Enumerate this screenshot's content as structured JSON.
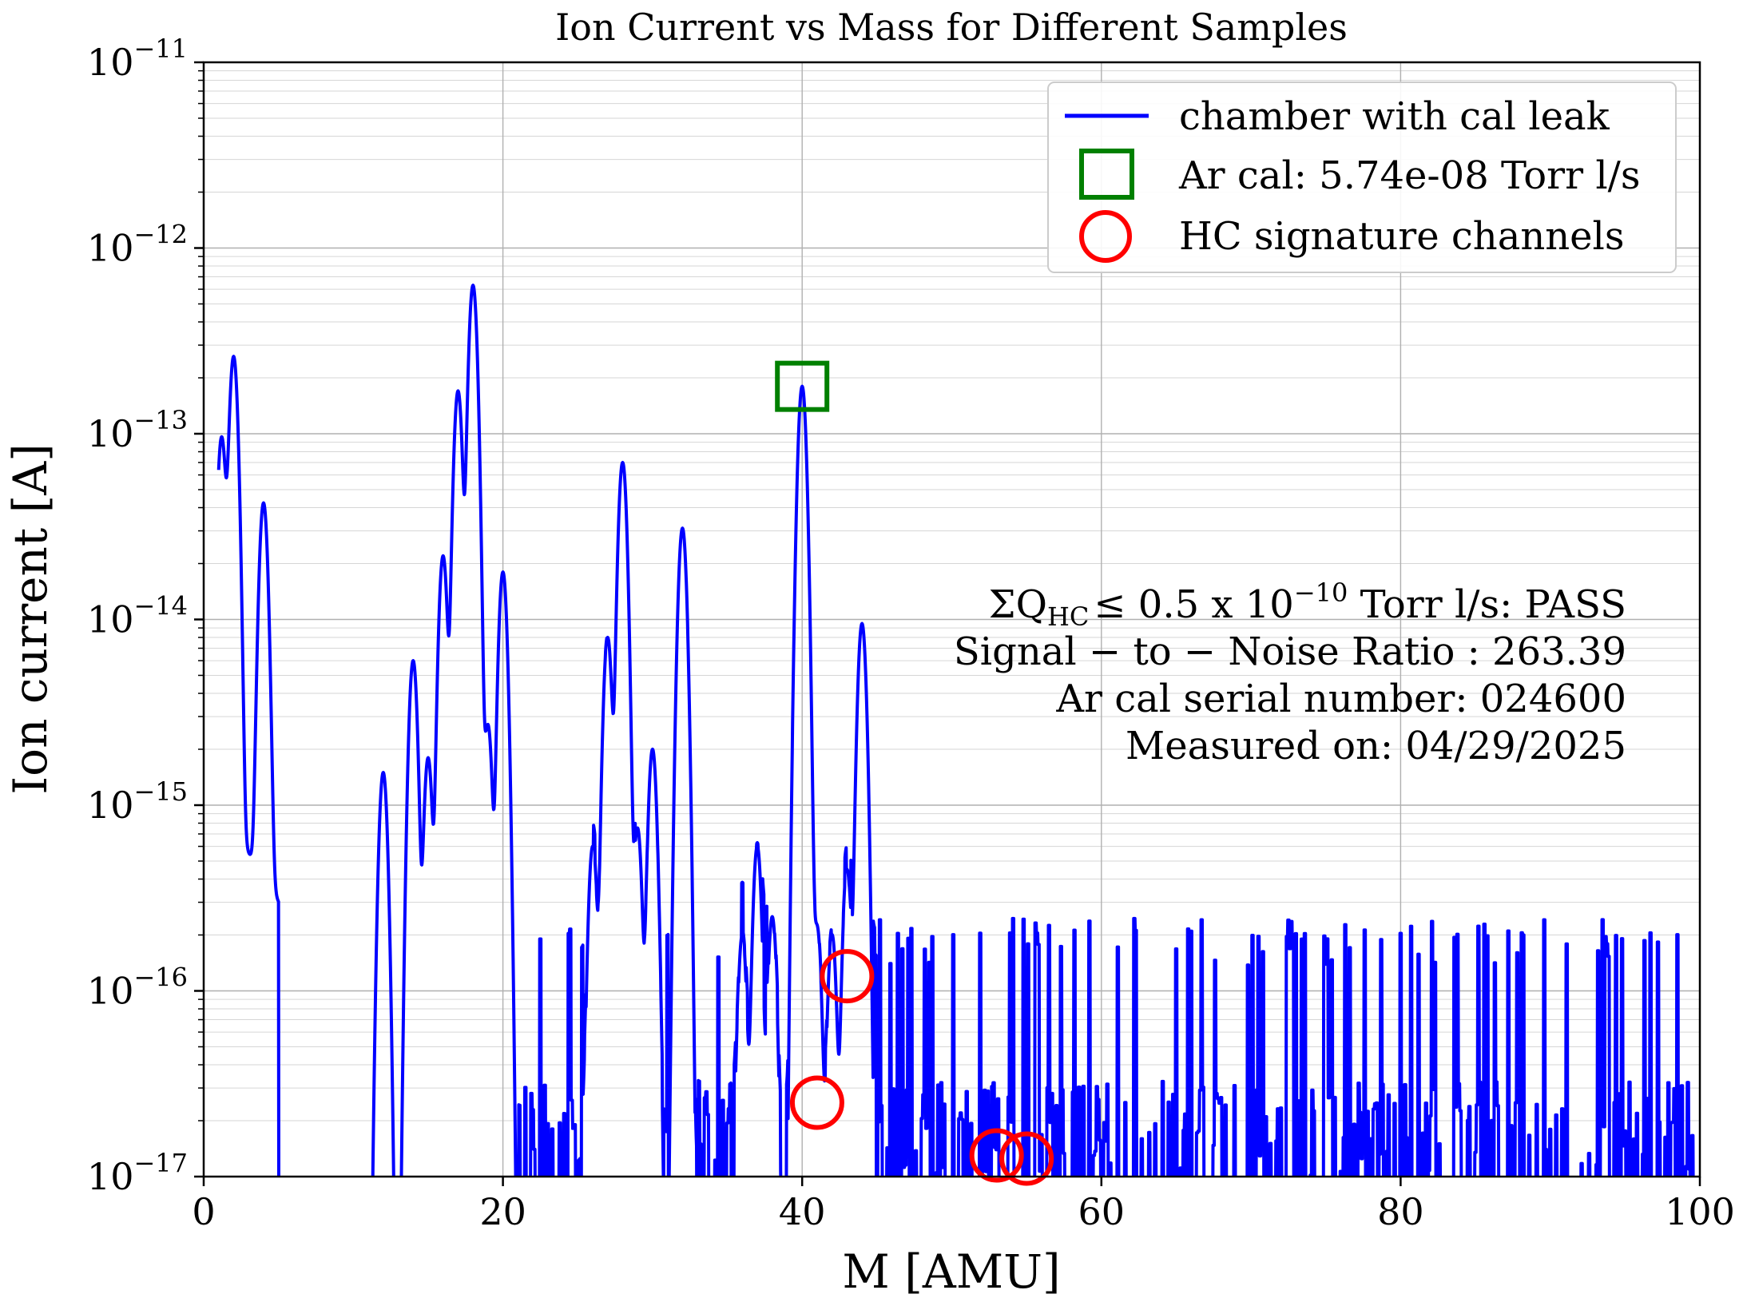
{
  "chart_data": {
    "type": "line",
    "title": "Ion Current vs Mass for Different Samples",
    "xlabel": "M [AMU]",
    "ylabel": "Ion current [A]",
    "xlim": [
      0,
      100
    ],
    "ylim": [
      1e-17,
      1e-11
    ],
    "yscale": "log",
    "grid": true,
    "legend_position": "top-right",
    "x_ticks": [
      {
        "value": 0,
        "label": "0"
      },
      {
        "value": 20,
        "label": "20"
      },
      {
        "value": 40,
        "label": "40"
      },
      {
        "value": 60,
        "label": "60"
      },
      {
        "value": 80,
        "label": "80"
      },
      {
        "value": 100,
        "label": "100"
      }
    ],
    "y_ticks": [
      {
        "value": 1e-11,
        "base": "10",
        "exp": "−11"
      },
      {
        "value": 1e-12,
        "base": "10",
        "exp": "−12"
      },
      {
        "value": 1e-13,
        "base": "10",
        "exp": "−13"
      },
      {
        "value": 1e-14,
        "base": "10",
        "exp": "−14"
      },
      {
        "value": 1e-15,
        "base": "10",
        "exp": "−15"
      },
      {
        "value": 1e-16,
        "base": "10",
        "exp": "−16"
      },
      {
        "value": 1e-17,
        "base": "10",
        "exp": "−17"
      }
    ],
    "legend": [
      {
        "label": "chamber with cal leak",
        "marker": "line",
        "color": "#0000ff"
      },
      {
        "label": "Ar cal: 5.74e-08 Torr l/s",
        "marker": "square",
        "color": "#008000"
      },
      {
        "label": "HC signature channels",
        "marker": "circle",
        "color": "#ff0000"
      }
    ],
    "series": [
      {
        "name": "chamber with cal leak",
        "color": "#0000ff",
        "peaks": [
          {
            "x": 1.2,
            "y": 9.5e-14
          },
          {
            "x": 2.0,
            "y": 2.6e-13
          },
          {
            "x": 4.0,
            "y": 4.2e-14
          },
          {
            "x": 12.0,
            "y": 1.5e-15
          },
          {
            "x": 14.0,
            "y": 6e-15
          },
          {
            "x": 15.0,
            "y": 1.8e-15
          },
          {
            "x": 16.0,
            "y": 2.2e-14
          },
          {
            "x": 17.0,
            "y": 1.7e-13
          },
          {
            "x": 18.0,
            "y": 6.3e-13
          },
          {
            "x": 19.0,
            "y": 2.7e-15
          },
          {
            "x": 20.0,
            "y": 1.8e-14
          },
          {
            "x": 26.0,
            "y": 6e-16
          },
          {
            "x": 27.0,
            "y": 8e-15
          },
          {
            "x": 28.0,
            "y": 7e-14
          },
          {
            "x": 29.0,
            "y": 7.5e-16
          },
          {
            "x": 30.0,
            "y": 2e-15
          },
          {
            "x": 32.0,
            "y": 3.1e-14
          },
          {
            "x": 36.0,
            "y": 2e-16
          },
          {
            "x": 37.0,
            "y": 6e-16
          },
          {
            "x": 38.0,
            "y": 2.5e-16
          },
          {
            "x": 40.0,
            "y": 1.8e-13
          },
          {
            "x": 41.0,
            "y": 2.2e-16
          },
          {
            "x": 42.0,
            "y": 2e-16
          },
          {
            "x": 43.0,
            "y": 4.5e-16
          },
          {
            "x": 44.0,
            "y": 9.5e-15
          }
        ],
        "noise_floor": 3e-17,
        "noise_spike_max": 2.5e-16,
        "noise_start_x": 21,
        "noise_end_x": 100
      }
    ],
    "ar_cal_marker": {
      "x": 40,
      "y": 1.8e-13
    },
    "hc_channels": [
      {
        "x": 41,
        "y": 2.5e-17
      },
      {
        "x": 43,
        "y": 1.2e-16
      },
      {
        "x": 53,
        "y": 1.3e-17
      },
      {
        "x": 55,
        "y": 1.25e-17
      }
    ],
    "annotation": {
      "line1_sigma": "ΣQ",
      "line1_sub": "HC",
      "line1_mid": "≤  0.5 x 10",
      "line1_sup": "−10",
      "line1_end": " Torr l/s:  PASS",
      "line2": "Signal − to − Noise Ratio :  263.39",
      "line3": "Ar cal serial number: 024600",
      "line4": "Measured on: 04/29/2025"
    }
  }
}
